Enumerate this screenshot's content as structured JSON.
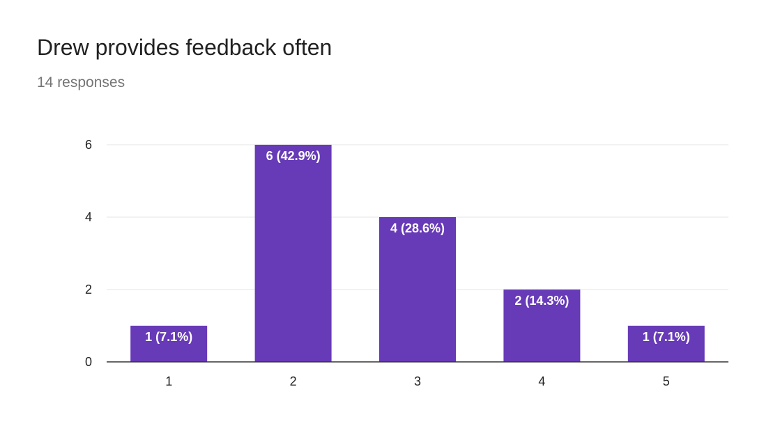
{
  "title": "Drew provides feedback often",
  "subtitle": "14 responses",
  "chart_data": {
    "type": "bar",
    "categories": [
      "1",
      "2",
      "3",
      "4",
      "5"
    ],
    "values": [
      1,
      6,
      4,
      2,
      1
    ],
    "data_labels": [
      "1 (7.1%)",
      "6 (42.9%)",
      "4 (28.6%)",
      "2 (14.3%)",
      "1 (7.1%)"
    ],
    "title": "Drew provides feedback often",
    "xlabel": "",
    "ylabel": "",
    "ylim": [
      0,
      6
    ],
    "yticks": [
      0,
      2,
      4,
      6
    ],
    "grid": true,
    "legend": "none",
    "bar_color": "#673ab7"
  }
}
